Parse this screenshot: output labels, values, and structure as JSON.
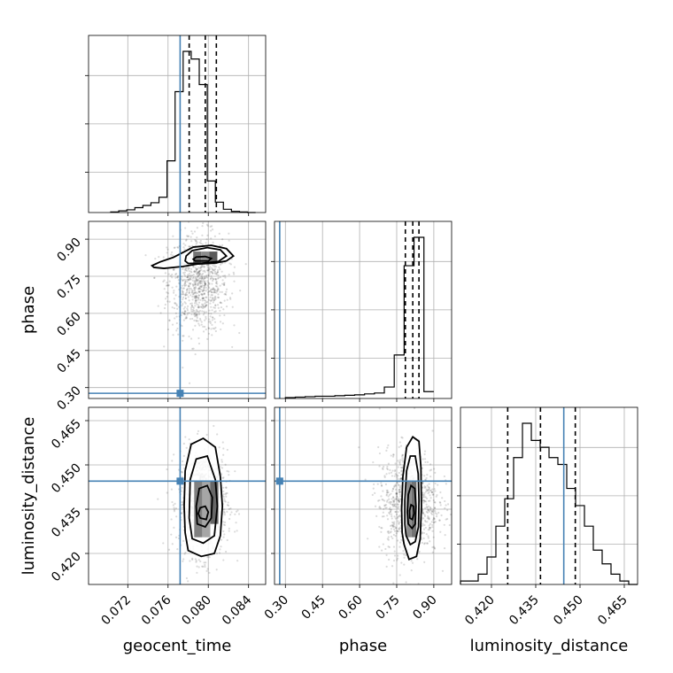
{
  "chart_data": {
    "type": "corner",
    "parameters": [
      "geocent_time",
      "phase",
      "luminosity_distance"
    ],
    "axis_labels": {
      "geocent_time": "geocent_time",
      "phase": "phase",
      "luminosity_distance": "luminosity_distance"
    },
    "ranges": {
      "geocent_time": [
        0.0681,
        0.0857
      ],
      "phase": [
        0.256,
        0.972
      ],
      "luminosity_distance": [
        0.4095,
        0.4695
      ]
    },
    "ticks": {
      "geocent_time": [
        "0.072",
        "0.076",
        "0.080",
        "0.084"
      ],
      "phase": [
        "0.30",
        "0.45",
        "0.60",
        "0.75",
        "0.90"
      ],
      "luminosity_distance": [
        "0.420",
        "0.435",
        "0.450",
        "0.465"
      ]
    },
    "truths": {
      "geocent_time": 0.0772,
      "phase": 0.277,
      "luminosity_distance": 0.4445
    },
    "quantiles": {
      "geocent_time": [
        0.0781,
        0.0797,
        0.0808
      ],
      "phase": [
        0.785,
        0.815,
        0.84
      ],
      "luminosity_distance": [
        0.4255,
        0.4366,
        0.4484
      ]
    },
    "colors": {
      "truth": "#4682b4",
      "line": "#000000",
      "grid": "#b0b0b0"
    },
    "grid": true,
    "histograms": {
      "geocent_time": {
        "edges": [
          0.0703,
          0.0711,
          0.0719,
          0.0727,
          0.0735,
          0.0743,
          0.0751,
          0.0759,
          0.0767,
          0.0775,
          0.0783,
          0.0791,
          0.0799,
          0.0807,
          0.0815,
          0.0823,
          0.0831,
          0.0839,
          0.0847
        ],
        "counts": [
          1,
          3,
          5,
          9,
          13,
          18,
          28,
          95,
          222,
          296,
          282,
          235,
          58,
          19,
          6,
          2,
          1,
          0
        ]
      },
      "phase": {
        "edges": [
          0.3,
          0.34,
          0.38,
          0.42,
          0.46,
          0.5,
          0.54,
          0.58,
          0.62,
          0.66,
          0.7,
          0.74,
          0.78,
          0.82,
          0.86,
          0.9
        ],
        "counts": [
          2,
          3,
          4,
          5,
          5,
          6,
          7,
          8,
          10,
          12,
          25,
          95,
          290,
          352,
          15
        ]
      },
      "luminosity_distance": {
        "edges": [
          0.4095,
          0.4125,
          0.4155,
          0.4185,
          0.4215,
          0.4245,
          0.4275,
          0.4305,
          0.4335,
          0.4365,
          0.4395,
          0.4425,
          0.4455,
          0.4485,
          0.4515,
          0.4545,
          0.4575,
          0.4605,
          0.4635,
          0.4665,
          0.4695
        ],
        "counts": [
          1,
          1,
          3,
          8,
          17,
          25,
          37,
          47,
          42,
          40,
          37,
          35,
          28,
          23,
          17,
          10,
          6,
          3,
          1,
          0
        ]
      }
    },
    "pairs": [
      {
        "x": "geocent_time",
        "y": "phase",
        "contours": [
          [
            [
              0.0756,
              0.782
            ],
            [
              0.0775,
              0.79
            ],
            [
              0.079,
              0.8
            ],
            [
              0.0805,
              0.803
            ],
            [
              0.0818,
              0.812
            ],
            [
              0.0825,
              0.832
            ],
            [
              0.0818,
              0.862
            ],
            [
              0.0803,
              0.875
            ],
            [
              0.0785,
              0.868
            ],
            [
              0.0777,
              0.851
            ],
            [
              0.0765,
              0.826
            ],
            [
              0.0752,
              0.808
            ],
            [
              0.0744,
              0.793
            ],
            [
              0.0746,
              0.786
            ]
          ],
          [
            [
              0.078,
              0.802
            ],
            [
              0.0794,
              0.803
            ],
            [
              0.081,
              0.81
            ],
            [
              0.0818,
              0.832
            ],
            [
              0.0812,
              0.857
            ],
            [
              0.0799,
              0.866
            ],
            [
              0.0784,
              0.854
            ],
            [
              0.0778,
              0.832
            ],
            [
              0.0777,
              0.812
            ]
          ],
          [
            [
              0.0787,
              0.812
            ],
            [
              0.08,
              0.812
            ],
            [
              0.0803,
              0.822
            ],
            [
              0.0797,
              0.83
            ],
            [
              0.0788,
              0.828
            ],
            [
              0.0785,
              0.819
            ]
          ]
        ],
        "density_cells": [
          {
            "x0": 0.0785,
            "x1": 0.0793,
            "y0": 0.8,
            "y1": 0.85,
            "level": 0.55
          },
          {
            "x0": 0.0793,
            "x1": 0.0801,
            "y0": 0.8,
            "y1": 0.85,
            "level": 0.45
          },
          {
            "x0": 0.0801,
            "x1": 0.0809,
            "y0": 0.8,
            "y1": 0.85,
            "level": 0.65
          }
        ],
        "scatter_center": [
          0.079,
          0.72
        ],
        "scatter_spread": [
          0.0015,
          0.1
        ],
        "scatter_count": 900
      },
      {
        "x": "geocent_time",
        "y": "luminosity_distance",
        "contours": [
          [
            [
              0.078,
              0.421
            ],
            [
              0.0793,
              0.419
            ],
            [
              0.0806,
              0.42
            ],
            [
              0.0812,
              0.426
            ],
            [
              0.0814,
              0.436
            ],
            [
              0.0812,
              0.446
            ],
            [
              0.0807,
              0.456
            ],
            [
              0.0795,
              0.459
            ],
            [
              0.0783,
              0.457
            ],
            [
              0.0777,
              0.448
            ],
            [
              0.0776,
              0.436
            ],
            [
              0.0777,
              0.427
            ]
          ],
          [
            [
              0.0784,
              0.425
            ],
            [
              0.0795,
              0.4235
            ],
            [
              0.0806,
              0.426
            ],
            [
              0.0809,
              0.436
            ],
            [
              0.0807,
              0.445
            ],
            [
              0.0799,
              0.453
            ],
            [
              0.0788,
              0.452
            ],
            [
              0.0782,
              0.445
            ],
            [
              0.0781,
              0.432
            ]
          ],
          [
            [
              0.0789,
              0.43
            ],
            [
              0.0797,
              0.429
            ],
            [
              0.0803,
              0.432
            ],
            [
              0.0804,
              0.439
            ],
            [
              0.0799,
              0.443
            ],
            [
              0.0791,
              0.442
            ],
            [
              0.0788,
              0.436
            ]
          ],
          [
            [
              0.0792,
              0.432
            ],
            [
              0.0798,
              0.4315
            ],
            [
              0.08,
              0.434
            ],
            [
              0.0797,
              0.436
            ],
            [
              0.0792,
              0.4355
            ],
            [
              0.079,
              0.4335
            ]
          ]
        ],
        "density_cells": [
          {
            "x0": 0.0786,
            "x1": 0.0794,
            "y0": 0.4255,
            "y1": 0.4445,
            "level": 0.5
          },
          {
            "x0": 0.0794,
            "x1": 0.0802,
            "y0": 0.4255,
            "y1": 0.4445,
            "level": 0.35
          },
          {
            "x0": 0.0802,
            "x1": 0.081,
            "y0": 0.43,
            "y1": 0.4445,
            "level": 0.6
          }
        ],
        "scatter_center": [
          0.0795,
          0.437
        ],
        "scatter_spread": [
          0.0012,
          0.009
        ],
        "scatter_count": 900
      },
      {
        "x": "phase",
        "y": "luminosity_distance",
        "contours": [
          [
            [
              0.78,
              0.423
            ],
            [
              0.8,
              0.418
            ],
            [
              0.83,
              0.419
            ],
            [
              0.845,
              0.425
            ],
            [
              0.85,
              0.436
            ],
            [
              0.848,
              0.449
            ],
            [
              0.84,
              0.458
            ],
            [
              0.815,
              0.4595
            ],
            [
              0.79,
              0.456
            ],
            [
              0.775,
              0.446
            ],
            [
              0.77,
              0.435
            ],
            [
              0.772,
              0.427
            ]
          ],
          [
            [
              0.788,
              0.426
            ],
            [
              0.805,
              0.423
            ],
            [
              0.825,
              0.424
            ],
            [
              0.838,
              0.429
            ],
            [
              0.84,
              0.438
            ],
            [
              0.837,
              0.447
            ],
            [
              0.825,
              0.453
            ],
            [
              0.805,
              0.453
            ],
            [
              0.79,
              0.448
            ],
            [
              0.783,
              0.438
            ],
            [
              0.783,
              0.43
            ]
          ],
          [
            [
              0.797,
              0.43
            ],
            [
              0.812,
              0.4285
            ],
            [
              0.825,
              0.43
            ],
            [
              0.828,
              0.436
            ],
            [
              0.823,
              0.442
            ],
            [
              0.808,
              0.443
            ],
            [
              0.797,
              0.44
            ],
            [
              0.793,
              0.434
            ]
          ],
          [
            [
              0.803,
              0.432
            ],
            [
              0.813,
              0.4315
            ],
            [
              0.82,
              0.4335
            ],
            [
              0.818,
              0.436
            ],
            [
              0.808,
              0.4365
            ],
            [
              0.802,
              0.4345
            ]
          ]
        ],
        "density_cells": [
          {
            "x0": 0.79,
            "x1": 0.81,
            "y0": 0.4255,
            "y1": 0.4445,
            "level": 0.45
          },
          {
            "x0": 0.81,
            "x1": 0.83,
            "y0": 0.4255,
            "y1": 0.4445,
            "level": 0.55
          }
        ],
        "scatter_center": [
          0.8,
          0.437
        ],
        "scatter_spread": [
          0.06,
          0.009
        ],
        "scatter_count": 900
      }
    ]
  }
}
